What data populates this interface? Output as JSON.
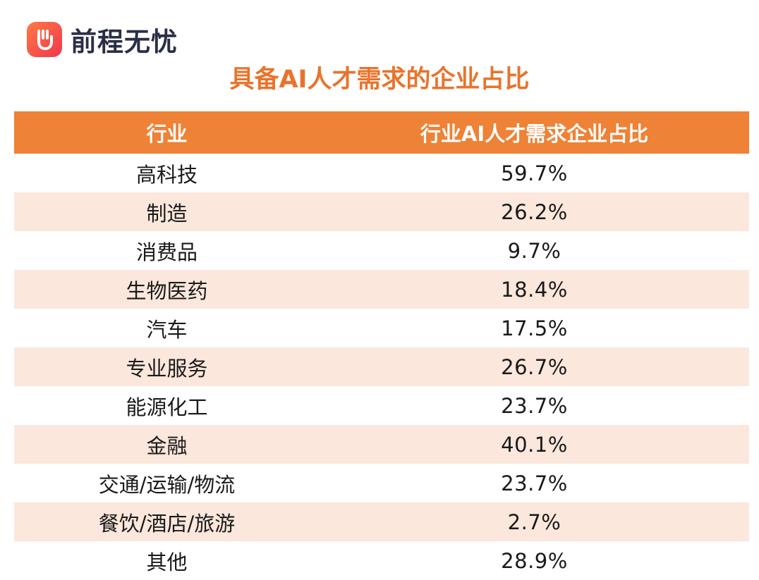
{
  "brand": {
    "name": "前程无忧",
    "logo_color_start": "#ff7a45",
    "logo_color_end": "#f0364e"
  },
  "chart_data": {
    "type": "table",
    "title": "具备AI人才需求的企业占比",
    "columns": [
      "行业",
      "行业AI人才需求企业占比"
    ],
    "rows": [
      {
        "industry": "高科技",
        "value": "59.7%"
      },
      {
        "industry": "制造",
        "value": "26.2%"
      },
      {
        "industry": "消费品",
        "value": "9.7%"
      },
      {
        "industry": "生物医药",
        "value": "18.4%"
      },
      {
        "industry": "汽车",
        "value": "17.5%"
      },
      {
        "industry": "专业服务",
        "value": "26.7%"
      },
      {
        "industry": "能源化工",
        "value": "23.7%"
      },
      {
        "industry": "金融",
        "value": "40.1%"
      },
      {
        "industry": "交通/运输/物流",
        "value": "23.7%"
      },
      {
        "industry": "餐饮/酒店/旅游",
        "value": "2.7%"
      },
      {
        "industry": "其他",
        "value": "28.9%"
      }
    ],
    "header_color": "#ee8236",
    "title_color": "#e8742c",
    "stripe_color": "#fbe7dc"
  }
}
